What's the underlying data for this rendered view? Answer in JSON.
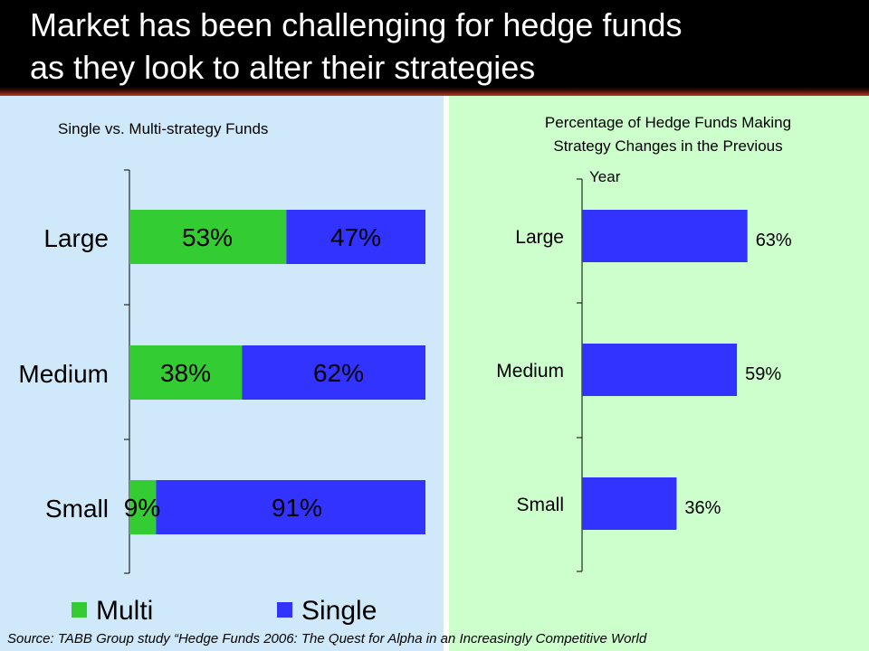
{
  "title_line1": "Market has been challenging for hedge funds",
  "title_line2": "as they look to alter their strategies",
  "colors": {
    "multi": "#33cc33",
    "single": "#3333ff",
    "left_bg": "#cfe9fb",
    "right_bg": "#ccffcc"
  },
  "chart_data": [
    {
      "type": "bar",
      "orientation": "horizontal",
      "stacked": true,
      "percent_stacked": true,
      "title": "Single vs. Multi-strategy Funds",
      "categories": [
        "Large",
        "Medium",
        "Small"
      ],
      "series": [
        {
          "name": "Multi",
          "values": [
            53,
            38,
            9
          ],
          "labels": [
            "53%",
            "38%",
            "9%"
          ],
          "color": "#33cc33"
        },
        {
          "name": "Single",
          "values": [
            47,
            62,
            91
          ],
          "labels": [
            "47%",
            "62%",
            "91%"
          ],
          "color": "#3333ff"
        }
      ],
      "xlim": [
        0,
        100
      ],
      "legend": "bottom"
    },
    {
      "type": "bar",
      "orientation": "horizontal",
      "title_lines": [
        "Percentage of Hedge Funds Making",
        "Strategy Changes in the Previous",
        "Year"
      ],
      "categories": [
        "Large",
        "Medium",
        "Small"
      ],
      "values": [
        63,
        59,
        36
      ],
      "labels": [
        "63%",
        "59%",
        "36%"
      ],
      "color": "#3333ff",
      "xlim": [
        0,
        100
      ]
    }
  ],
  "legend": {
    "multi": "Multi",
    "single": "Single"
  },
  "source": "Source: TABB Group study “Hedge Funds 2006: The Quest for Alpha in an Increasingly Competitive World"
}
